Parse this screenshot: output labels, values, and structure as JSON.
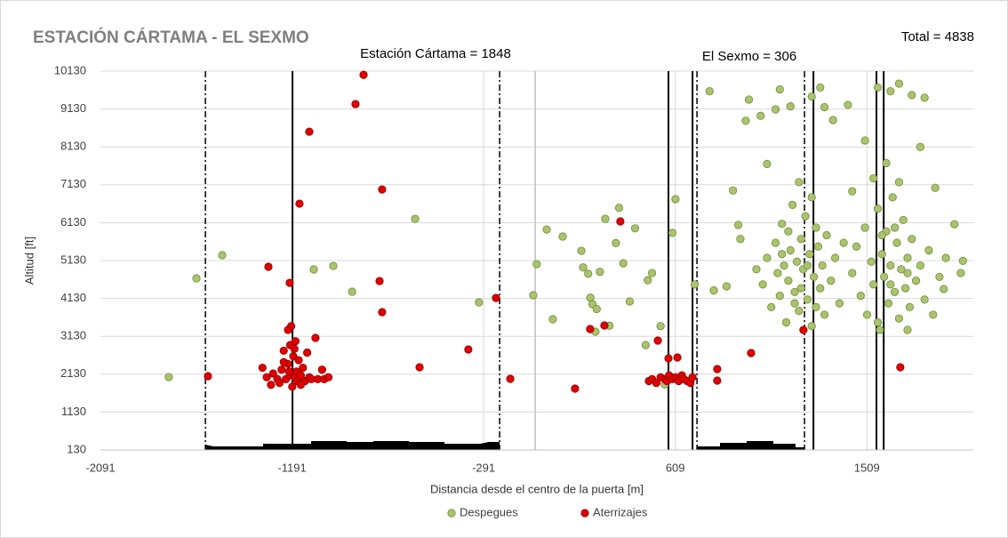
{
  "chart_data": {
    "type": "scatter",
    "title": "ESTACIÓN CÁRTAMA - EL SEXMO",
    "annotations": [
      "Estación Cártama = 1848",
      "El Sexmo = 306",
      "Total = 4838"
    ],
    "x_label": "Distancia desde el centro de la puerta [m]",
    "y_label": "Altitud [ft]",
    "xlim": [
      -2091,
      2009
    ],
    "ylim": [
      130,
      10130
    ],
    "xticks": [
      -2091,
      -1191,
      -291,
      609,
      1509
    ],
    "yticks": [
      130,
      1130,
      2130,
      3130,
      4130,
      5130,
      6130,
      7130,
      8130,
      9130,
      10130
    ],
    "grid": true,
    "legend": "bottom",
    "vlines": [
      {
        "x": -1598,
        "style": "dashdot"
      },
      {
        "x": -216,
        "style": "dashdot"
      },
      {
        "x": 711,
        "style": "dashdot"
      },
      {
        "x": 1216,
        "style": "dashdot"
      },
      {
        "x": -1189,
        "style": "solid"
      },
      {
        "x": 577,
        "style": "solid"
      },
      {
        "x": 690,
        "style": "solid"
      },
      {
        "x": 1258,
        "style": "solid"
      },
      {
        "x": 1554,
        "style": "solid"
      },
      {
        "x": 1588,
        "style": "solid"
      },
      {
        "x": -49,
        "style": "gray"
      }
    ],
    "series": [
      {
        "name": "Despegues",
        "color": "#a9c46c",
        "x": [
          -1770,
          -1640,
          -1519,
          -1089,
          -997,
          -909,
          -613,
          -313,
          -58,
          -42,
          5,
          34,
          80,
          168,
          234,
          176,
          200,
          210,
          220,
          240,
          255,
          280,
          300,
          330,
          345,
          365,
          395,
          420,
          470,
          480,
          500,
          540,
          560,
          610,
          596,
          700,
          770,
          790,
          850,
          880,
          905,
          915,
          940,
          955,
          990,
          1010,
          1040,
          1080,
          1100,
          1150,
          1250,
          1290,
          1310,
          1350,
          1420,
          1440,
          1500,
          1560,
          1620,
          1660,
          1720,
          1780,
          1760,
          1830,
          1920,
          1960,
          1950,
          1870,
          1020,
          1040,
          1060,
          1080,
          1090,
          1100,
          1110,
          1120,
          1130,
          1140,
          1150,
          1160,
          1170,
          1180,
          1190,
          1200,
          1210,
          1220,
          1230,
          1240,
          1250,
          1260,
          1270,
          1280,
          1290,
          1300,
          1310,
          1320,
          1340,
          1360,
          1380,
          1400,
          1110,
          1140,
          1170,
          1200,
          1230,
          1250,
          1190,
          1270,
          1440,
          1460,
          1480,
          1500,
          1510,
          1530,
          1540,
          1560,
          1570,
          1580,
          1590,
          1600,
          1610,
          1620,
          1630,
          1640,
          1650,
          1660,
          1670,
          1680,
          1690,
          1700,
          1710,
          1720,
          1740,
          1760,
          1780,
          1800,
          1820,
          1850,
          1880,
          1540,
          1600,
          1660,
          1700,
          1560,
          1620,
          1580,
          1640,
          1700
        ],
        "y": [
          2054,
          4660,
          5270,
          4895,
          4988,
          4308,
          6232,
          4026,
          4214,
          5035,
          5950,
          3580,
          5763,
          5387,
          3252,
          4950,
          4780,
          4150,
          3980,
          3850,
          4830,
          6230,
          3410,
          5590,
          6520,
          5060,
          4050,
          5980,
          2900,
          4610,
          4800,
          3400,
          1860,
          6750,
          5860,
          4500,
          9600,
          4340,
          4450,
          6980,
          6070,
          5700,
          8820,
          9380,
          4900,
          8950,
          7680,
          9120,
          9650,
          9200,
          9460,
          9700,
          9180,
          8840,
          9240,
          6960,
          8300,
          9700,
          9600,
          9800,
          9500,
          9430,
          8130,
          7050,
          6090,
          5120,
          4800,
          4380,
          4500,
          5200,
          3900,
          5600,
          4800,
          4200,
          6100,
          5000,
          3500,
          4600,
          5400,
          6600,
          4300,
          5100,
          3800,
          5700,
          4900,
          6300,
          4100,
          5300,
          3400,
          4700,
          6000,
          5500,
          4400,
          5000,
          3700,
          5800,
          4600,
          5200,
          4000,
          5600,
          5300,
          5900,
          4000,
          4400,
          5000,
          6800,
          7200,
          3900,
          4800,
          5500,
          4200,
          6000,
          3700,
          5100,
          4500,
          6500,
          3300,
          5300,
          4700,
          5900,
          4000,
          5000,
          6800,
          4300,
          5600,
          3600,
          4900,
          6200,
          4400,
          5200,
          3900,
          5700,
          4600,
          5000,
          4100,
          5400,
          3700,
          4700,
          5200,
          7300,
          7700,
          7200,
          3300,
          3500,
          4500,
          5800,
          6000,
          4800
        ]
      },
      {
        "name": "Aterrizajes",
        "color": "#e00000",
        "x": [
          -1586,
          -1302,
          -1202,
          -1156,
          -1110,
          -855,
          -893,
          -768,
          -780,
          -768,
          -1081,
          -592,
          -363,
          -233,
          -166,
          138,
          209,
          276,
          351,
          527,
          577,
          619,
          806,
          806,
          965,
          1211,
          1666,
          -1330,
          -1310,
          -1290,
          -1280,
          -1260,
          -1250,
          -1240,
          -1230,
          -1220,
          -1210,
          -1200,
          -1200,
          -1195,
          -1190,
          -1185,
          -1180,
          -1175,
          -1170,
          -1165,
          -1160,
          -1150,
          -1140,
          -1130,
          -1120,
          -1110,
          -1100,
          -1070,
          -1050,
          -1040,
          -1020,
          -1180,
          -1210,
          -1230,
          -1150,
          -1205,
          485,
          500,
          520,
          540,
          560,
          570,
          580,
          595,
          610,
          625,
          640,
          650,
          665,
          680,
          690
        ],
        "y": [
          2078,
          4965,
          4542,
          6631,
          8532,
          10034,
          9260,
          7007,
          4589,
          3768,
          3087,
          2313,
          2782,
          4143,
          2008,
          1749,
          3322,
          3416,
          6162,
          3017,
          2547,
          2571,
          2266,
          1961,
          2688,
          3298,
          2313,
          2300,
          2050,
          1850,
          2150,
          2000,
          1900,
          2250,
          2750,
          2000,
          2400,
          2900,
          2100,
          3400,
          1800,
          2600,
          2050,
          3000,
          2200,
          1950,
          2500,
          2100,
          2300,
          1950,
          2700,
          2050,
          2000,
          2000,
          2250,
          2000,
          2050,
          2800,
          3300,
          2450,
          1850,
          2200,
          1950,
          2000,
          1900,
          2050,
          2000,
          1950,
          2100,
          2000,
          2050,
          1950,
          2100,
          2000,
          1950,
          1900,
          2050
        ]
      }
    ]
  }
}
